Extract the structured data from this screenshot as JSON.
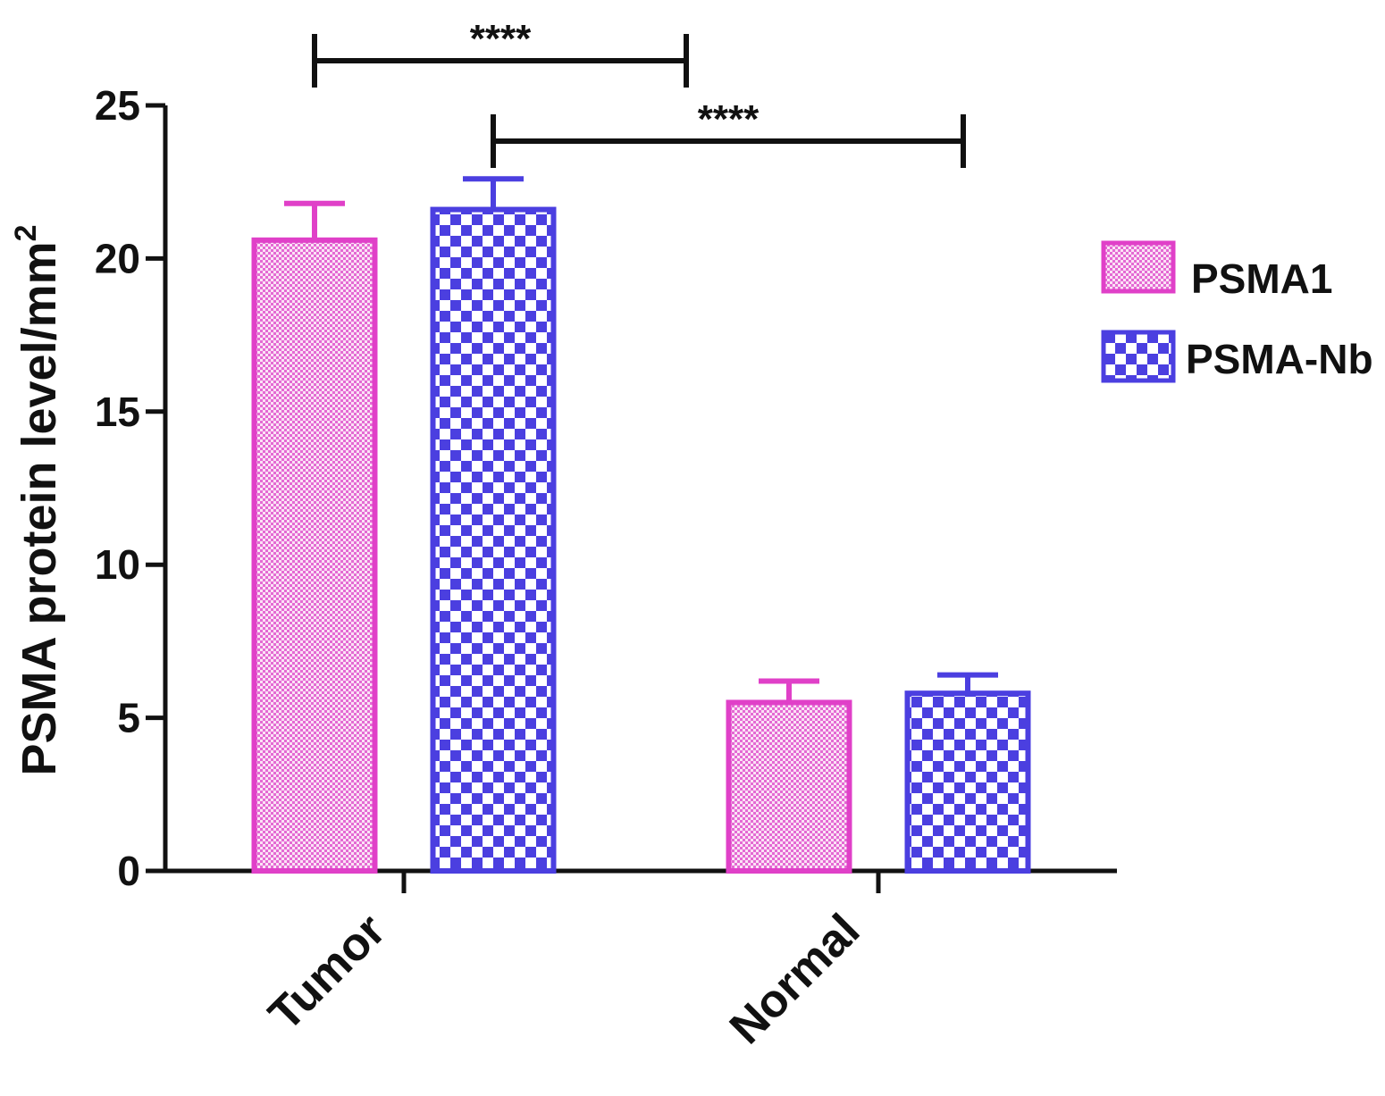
{
  "chart_data": {
    "type": "bar",
    "categories": [
      "Tumor",
      "Normal"
    ],
    "series": [
      {
        "name": "PSMA1",
        "values": [
          20.6,
          5.5
        ],
        "errors": [
          1.2,
          0.7
        ],
        "color": "#e040c8",
        "pattern": "fine-dots"
      },
      {
        "name": "PSMA-Nb",
        "values": [
          21.6,
          5.8
        ],
        "errors": [
          1.0,
          0.6
        ],
        "color": "#4b3fe0",
        "pattern": "checker"
      }
    ],
    "y_title_main": "PSMA   protein level/mm",
    "y_title_sup": "2",
    "xlabel": "",
    "ylim": [
      0,
      25
    ],
    "yticks": [
      0,
      5,
      10,
      15,
      20,
      25
    ],
    "legend_position": "right",
    "grid": false,
    "significance": [
      {
        "label": "****",
        "from": "Tumor PSMA1",
        "to": "Normal PSMA1"
      },
      {
        "label": "****",
        "from": "Tumor PSMA-Nb",
        "to": "Normal PSMA-Nb"
      }
    ]
  }
}
